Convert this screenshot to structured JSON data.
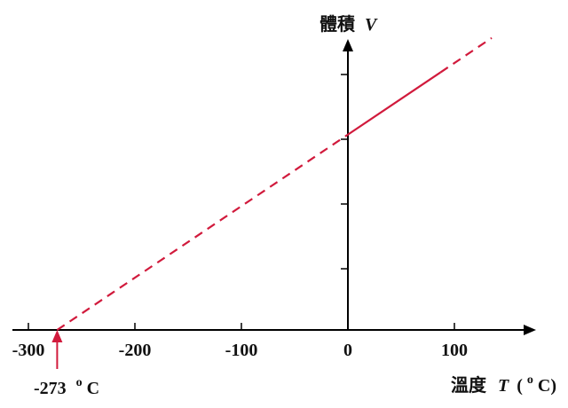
{
  "chart_data": {
    "type": "line",
    "x_axis": {
      "label_cjk": "溫度",
      "label_symbol": "T",
      "label_unit_open": "(",
      "label_unit_degree": "o",
      "label_unit_close": "C)",
      "ticks": [
        -300,
        -200,
        -100,
        0,
        100
      ],
      "tick_labels": [
        "-300",
        "-200",
        "-100",
        "0",
        "100"
      ],
      "range": [
        -330,
        170
      ]
    },
    "y_axis": {
      "label_cjk": "體積",
      "label_symbol": "V",
      "tick_count_above_origin": 4,
      "tick_labels_shown": false
    },
    "series": [
      {
        "segments": [
          {
            "style": "dashed",
            "x": [
              -273,
              0
            ]
          },
          {
            "style": "solid",
            "x": [
              0,
              87
            ]
          },
          {
            "style": "dashed",
            "x": [
              87,
              135
            ]
          }
        ],
        "x_intercept": -273,
        "y_at_zero_relative": 0.67,
        "color": "#d11a3c"
      }
    ],
    "annotations": [
      {
        "x": -273,
        "text_value": "-273",
        "text_degree": "o",
        "text_unit": "C",
        "arrow": "up",
        "color": "#d11a3c"
      }
    ],
    "grid": false,
    "legend": "none"
  }
}
